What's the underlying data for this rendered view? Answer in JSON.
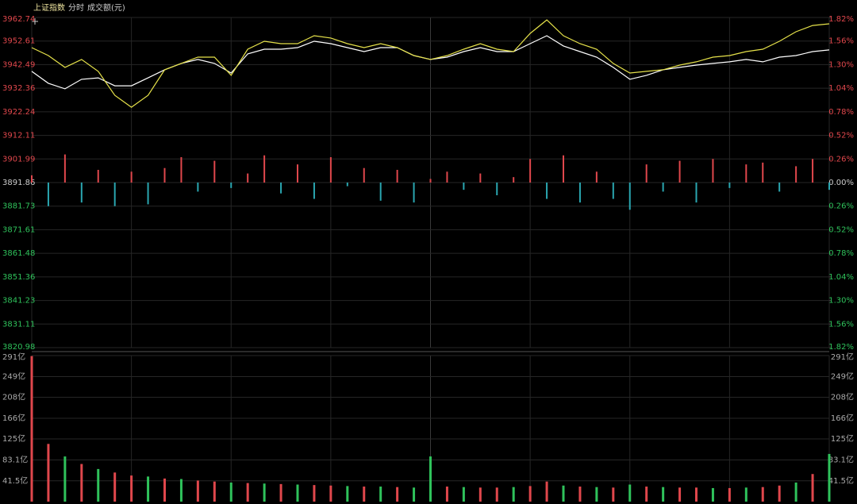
{
  "chart_data": [
    {
      "type": "line",
      "title": "上证指数",
      "subtitle": "分时",
      "x": [
        0,
        5,
        10,
        15,
        20,
        25,
        30,
        35,
        40,
        45,
        50,
        55,
        60,
        65,
        70,
        75,
        80,
        85,
        90,
        95,
        100,
        105,
        110,
        115,
        120,
        125,
        130,
        135,
        140,
        145,
        150,
        155,
        160,
        165,
        170,
        175,
        180,
        185,
        190,
        195,
        200,
        205,
        210,
        215,
        220,
        225,
        230,
        235,
        240
      ],
      "xlim": [
        0,
        240
      ],
      "ylim": [
        3820.98,
        3962.74
      ],
      "yticks": [
        3962.74,
        3952.61,
        3942.49,
        3932.36,
        3922.24,
        3912.11,
        3901.99,
        3891.86,
        3881.73,
        3871.61,
        3861.48,
        3851.36,
        3841.23,
        3831.11,
        3820.98
      ],
      "y2lim": [
        -1.82,
        1.82
      ],
      "y2ticks": [
        {
          "value": 1.82,
          "label": "1.82%"
        },
        {
          "value": 1.56,
          "label": "1.56%"
        },
        {
          "value": 1.3,
          "label": "1.30%"
        },
        {
          "value": 1.04,
          "label": "1.04%"
        },
        {
          "value": 0.78,
          "label": "0.78%"
        },
        {
          "value": 0.52,
          "label": "0.52%"
        },
        {
          "value": 0.26,
          "label": "0.26%"
        },
        {
          "value": 0,
          "label": "0.00%"
        },
        {
          "value": -0.26,
          "label": "0.26%"
        },
        {
          "value": -0.52,
          "label": "0.52%"
        },
        {
          "value": -0.78,
          "label": "0.78%"
        },
        {
          "value": -1.04,
          "label": "1.04%"
        },
        {
          "value": -1.3,
          "label": "1.30%"
        },
        {
          "value": -1.56,
          "label": "1.56%"
        },
        {
          "value": -1.82,
          "label": "1.82%"
        }
      ],
      "grid": true,
      "series": [
        {
          "color": "#ffffff",
          "values": [
            3939.6,
            3934.5,
            3932.1,
            3936.2,
            3936.8,
            3933.4,
            3933.4,
            3936.8,
            3940.3,
            3943.0,
            3944.7,
            3943.0,
            3938.9,
            3947.1,
            3949.1,
            3949.1,
            3949.8,
            3952.5,
            3951.5,
            3949.8,
            3948.1,
            3949.8,
            3949.8,
            3946.4,
            3944.7,
            3945.7,
            3948.1,
            3949.8,
            3948.1,
            3948.1,
            3951.5,
            3954.9,
            3950.5,
            3948.1,
            3945.7,
            3941.3,
            3936.2,
            3937.9,
            3940.3,
            3941.3,
            3942.3,
            3943.0,
            3943.7,
            3944.7,
            3943.7,
            3945.7,
            3946.4,
            3948.1,
            3948.8
          ]
        },
        {
          "color": "#e6e24a",
          "values": [
            3949.8,
            3946.4,
            3941.3,
            3944.7,
            3939.6,
            3929.3,
            3924.2,
            3929.3,
            3940.3,
            3943.0,
            3945.7,
            3945.7,
            3937.9,
            3949.1,
            3952.5,
            3951.5,
            3951.5,
            3954.9,
            3953.9,
            3951.5,
            3949.8,
            3951.5,
            3949.8,
            3946.4,
            3944.7,
            3946.4,
            3949.1,
            3951.5,
            3949.1,
            3948.1,
            3955.9,
            3961.7,
            3954.9,
            3951.5,
            3949.1,
            3943.0,
            3938.9,
            3939.6,
            3940.3,
            3942.3,
            3943.7,
            3945.7,
            3946.4,
            3948.1,
            3949.1,
            3952.5,
            3956.6,
            3959.3,
            3960.0
          ]
        },
        {
          "type": "bar",
          "axis": "y2",
          "up_color": "#e0474c",
          "down_color": "#2aa6b0",
          "values": [
            0.08,
            -0.26,
            0.31,
            -0.22,
            0.14,
            -0.26,
            0.12,
            -0.24,
            0.16,
            0.28,
            -0.1,
            0.24,
            -0.06,
            0.1,
            0.3,
            -0.12,
            0.2,
            -0.18,
            0.28,
            -0.04,
            0.16,
            -0.2,
            0.14,
            -0.22,
            0.04,
            0.12,
            -0.08,
            0.1,
            -0.14,
            0.06,
            0.26,
            -0.18,
            0.3,
            -0.22,
            0.12,
            -0.18,
            -0.3,
            0.2,
            -0.1,
            0.24,
            -0.22,
            0.26,
            -0.06,
            0.2,
            0.22,
            -0.1,
            0.18,
            0.26,
            -0.08
          ]
        }
      ]
    },
    {
      "type": "bar",
      "title": "成交额(元)",
      "x": [
        0,
        5,
        10,
        15,
        20,
        25,
        30,
        35,
        40,
        45,
        50,
        55,
        60,
        65,
        70,
        75,
        80,
        85,
        90,
        95,
        100,
        105,
        110,
        115,
        120,
        125,
        130,
        135,
        140,
        145,
        150,
        155,
        160,
        165,
        170,
        175,
        180,
        185,
        190,
        195,
        200,
        205,
        210,
        215,
        220,
        225,
        230,
        235,
        240
      ],
      "xlim": [
        0,
        240
      ],
      "ylim": [
        0,
        291
      ],
      "yticks": [
        {
          "value": 41.5,
          "label": "41.5亿"
        },
        {
          "value": 83.1,
          "label": "83.1亿"
        },
        {
          "value": 125,
          "label": "125亿"
        },
        {
          "value": 166,
          "label": "166亿"
        },
        {
          "value": 208,
          "label": "208亿"
        },
        {
          "value": 249,
          "label": "249亿"
        },
        {
          "value": 291,
          "label": "291亿"
        }
      ],
      "grid": true,
      "values": [
        290,
        115,
        90,
        75,
        65,
        58,
        52,
        50,
        46,
        45,
        42,
        40,
        38,
        37,
        36,
        35,
        34,
        33,
        32,
        31,
        30,
        30,
        29,
        28,
        90,
        30,
        29,
        28,
        28,
        29,
        31,
        40,
        32,
        30,
        29,
        28,
        34,
        30,
        29,
        28,
        28,
        27,
        27,
        28,
        29,
        32,
        38,
        55,
        95
      ],
      "colors": [
        "#e0474c",
        "#e0474c",
        "#2fc25b",
        "#e0474c",
        "#2fc25b",
        "#e0474c",
        "#e0474c",
        "#2fc25b",
        "#e0474c",
        "#2fc25b",
        "#e0474c",
        "#e0474c",
        "#2fc25b",
        "#e0474c",
        "#2fc25b",
        "#e0474c",
        "#2fc25b",
        "#e0474c",
        "#e0474c",
        "#2fc25b",
        "#e0474c",
        "#2fc25b",
        "#e0474c",
        "#2fc25b",
        "#2fc25b",
        "#e0474c",
        "#2fc25b",
        "#e0474c",
        "#e0474c",
        "#2fc25b",
        "#e0474c",
        "#e0474c",
        "#2fc25b",
        "#e0474c",
        "#2fc25b",
        "#e0474c",
        "#2fc25b",
        "#e0474c",
        "#2fc25b",
        "#e0474c",
        "#e0474c",
        "#2fc25b",
        "#e0474c",
        "#2fc25b",
        "#e0474c",
        "#e0474c",
        "#2fc25b",
        "#e0474c",
        "#2fc25b"
      ]
    }
  ]
}
